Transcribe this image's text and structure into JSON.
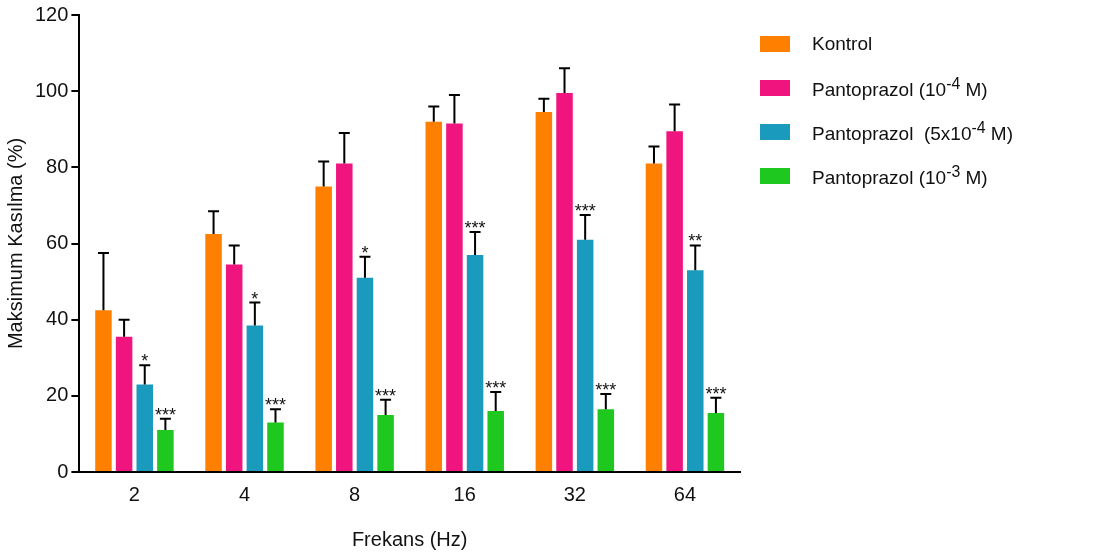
{
  "chart_data": {
    "type": "bar",
    "xlabel": "Frekans (Hz)",
    "ylabel": "Maksimum Kasılma (%)",
    "categories": [
      "2",
      "4",
      "8",
      "16",
      "32",
      "64"
    ],
    "ylim": [
      0,
      120
    ],
    "yticks": [
      0,
      20,
      40,
      60,
      80,
      100,
      120
    ],
    "grid": false,
    "legend": "right",
    "series": [
      {
        "name": "Kontrol",
        "color": "#ff8000",
        "values": [
          42.5,
          62.5,
          75,
          92,
          94.5,
          81
        ],
        "errors": [
          [
            42.5,
            57.5
          ],
          [
            62.5,
            68.5
          ],
          [
            75,
            81.5
          ],
          [
            92,
            96
          ],
          [
            94.5,
            98
          ],
          [
            81,
            85.5
          ]
        ]
      },
      {
        "name": "Pantoprazol (10$^{-4}$ M)",
        "color": "#f0147e",
        "values": [
          35.5,
          54.5,
          81,
          91.5,
          99.5,
          89.5
        ],
        "errors": [
          [
            35.5,
            40
          ],
          [
            54.5,
            59.5
          ],
          [
            81,
            89
          ],
          [
            91.5,
            99
          ],
          [
            99.5,
            106
          ],
          [
            89.5,
            96.5
          ]
        ]
      },
      {
        "name": "Pantoprazol  (5x10$^{-4}$ M)",
        "color": "#1a9bbd",
        "values": [
          23,
          38.5,
          51,
          57,
          61,
          53
        ],
        "errors": [
          [
            23,
            28
          ],
          [
            38.5,
            44.5
          ],
          [
            51,
            56.5
          ],
          [
            57,
            63
          ],
          [
            61,
            67.5
          ],
          [
            53,
            59.5
          ]
        ]
      },
      {
        "name": "Pantoprazol (10$^{-3}$ M)",
        "color": "#1ec81e",
        "values": [
          11,
          13,
          15,
          16,
          16.5,
          15.5
        ],
        "errors": [
          [
            11,
            14
          ],
          [
            13,
            16.5
          ],
          [
            15,
            19
          ],
          [
            16,
            21
          ],
          [
            16.5,
            20.5
          ],
          [
            15.5,
            19.5
          ]
        ]
      }
    ],
    "annotations": [
      {
        "text": "*",
        "x": "2",
        "y": 28
      },
      {
        "text": "***",
        "x": "2",
        "y": 14
      },
      {
        "text": "*",
        "x": "4",
        "y": 44.5
      },
      {
        "text": "***",
        "x": "4",
        "y": 16.5
      },
      {
        "text": "*",
        "x": "8",
        "y": 56.5
      },
      {
        "text": "***",
        "x": "8",
        "y": 19
      },
      {
        "text": "***",
        "x": "16",
        "y": 63
      },
      {
        "text": "***",
        "x": "16",
        "y": 21
      },
      {
        "text": "***",
        "x": "32",
        "y": 67.5
      },
      {
        "text": "***",
        "x": "32",
        "y": 20.5
      },
      {
        "text": "**",
        "x": "64",
        "y": 59.5
      },
      {
        "text": "***",
        "x": "64",
        "y": 19.5
      }
    ]
  }
}
